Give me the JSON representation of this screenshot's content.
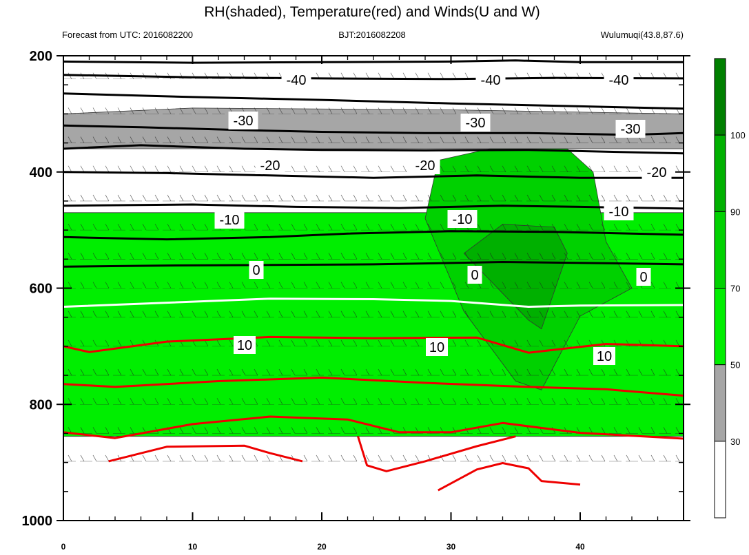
{
  "chart_data": {
    "type": "heatmap",
    "title": "RH(shaded), Temperature(red) and Winds(U and W)",
    "subtitle_left": "Forecast from UTC: 2016082200",
    "subtitle_center": "BJT:2016082208",
    "subtitle_right": "Wulumuqi(43.8,87.6)",
    "xlabel": "",
    "ylabel": "",
    "xlim": [
      0,
      48
    ],
    "ylim": [
      200,
      1000
    ],
    "y_reversed": true,
    "x_ticks": [
      "0",
      "10",
      "20",
      "30",
      "40"
    ],
    "y_ticks": [
      "200",
      "400",
      "600",
      "800",
      "1000"
    ],
    "colorbar": {
      "levels": [
        "30",
        "50",
        "70",
        "90",
        "100"
      ],
      "colors": [
        "#ffffff",
        "#a6a6a6",
        "#00ee00",
        "#00d100",
        "#00b000",
        "#007f00"
      ]
    },
    "temperature_contour_labels": [
      "-40",
      "-40",
      "-40",
      "-30",
      "-30",
      "-30",
      "-20",
      "-20",
      "-20",
      "-10",
      "-10",
      "-10",
      "0",
      "0",
      "0",
      "10",
      "10",
      "10"
    ],
    "temperature_contours": [
      {
        "level": -40,
        "color": "#000000",
        "points": [
          [
            0,
            210
          ],
          [
            10,
            212
          ],
          [
            20,
            211
          ],
          [
            30,
            210
          ],
          [
            35,
            208
          ],
          [
            40,
            211
          ],
          [
            48,
            211
          ]
        ]
      },
      {
        "level": -40,
        "color": "#000000",
        "points": [
          [
            0,
            233
          ],
          [
            10,
            237
          ],
          [
            20,
            239
          ],
          [
            30,
            240
          ],
          [
            38,
            238
          ],
          [
            48,
            239
          ]
        ]
      },
      {
        "level": -30,
        "color": "#000000",
        "points": [
          [
            0,
            265
          ],
          [
            10,
            271
          ],
          [
            20,
            276
          ],
          [
            30,
            282
          ],
          [
            40,
            287
          ],
          [
            48,
            291
          ]
        ]
      },
      {
        "level": -30,
        "color": "#000000",
        "points": [
          [
            0,
            320
          ],
          [
            6,
            323
          ],
          [
            14,
            328
          ],
          [
            20,
            331
          ],
          [
            28,
            333
          ],
          [
            36,
            333
          ],
          [
            44,
            336
          ],
          [
            48,
            333
          ]
        ]
      },
      {
        "level": -30,
        "color": "#000000",
        "points": [
          [
            0,
            360
          ],
          [
            6,
            354
          ],
          [
            14,
            360
          ],
          [
            20,
            362
          ],
          [
            28,
            363
          ],
          [
            36,
            362
          ],
          [
            44,
            366
          ],
          [
            48,
            368
          ]
        ]
      },
      {
        "level": -20,
        "color": "#000000",
        "points": [
          [
            0,
            400
          ],
          [
            8,
            402
          ],
          [
            16,
            406
          ],
          [
            24,
            410
          ],
          [
            32,
            406
          ],
          [
            40,
            410
          ],
          [
            48,
            410
          ]
        ]
      },
      {
        "level": -20,
        "color": "#000000",
        "points": [
          [
            0,
            458
          ],
          [
            10,
            456
          ],
          [
            18,
            460
          ],
          [
            26,
            462
          ],
          [
            34,
            458
          ],
          [
            40,
            460
          ],
          [
            48,
            463
          ]
        ]
      },
      {
        "level": -10,
        "color": "#000000",
        "points": [
          [
            0,
            512
          ],
          [
            8,
            516
          ],
          [
            16,
            512
          ],
          [
            22,
            506
          ],
          [
            30,
            502
          ],
          [
            38,
            503
          ],
          [
            48,
            508
          ]
        ]
      },
      {
        "level": -10,
        "color": "#000000",
        "points": [
          [
            0,
            563
          ],
          [
            8,
            561
          ],
          [
            16,
            560
          ],
          [
            24,
            559
          ],
          [
            34,
            555
          ],
          [
            42,
            557
          ],
          [
            48,
            559
          ]
        ]
      },
      {
        "level": 0,
        "color": "#ffffff",
        "points": [
          [
            0,
            632
          ],
          [
            8,
            625
          ],
          [
            16,
            618
          ],
          [
            24,
            619
          ],
          [
            30,
            622
          ],
          [
            36,
            632
          ],
          [
            40,
            630
          ],
          [
            48,
            629
          ]
        ]
      },
      {
        "level": 10,
        "color": "#ee0000",
        "points": [
          [
            0,
            700
          ],
          [
            2,
            710
          ],
          [
            8,
            692
          ],
          [
            16,
            684
          ],
          [
            24,
            686
          ],
          [
            32,
            685
          ],
          [
            36,
            711
          ],
          [
            42,
            696
          ],
          [
            48,
            700
          ]
        ]
      },
      {
        "level": 10,
        "color": "#ee0000",
        "points": [
          [
            0,
            765
          ],
          [
            4,
            770
          ],
          [
            12,
            760
          ],
          [
            20,
            754
          ],
          [
            28,
            763
          ],
          [
            36,
            770
          ],
          [
            42,
            774
          ],
          [
            48,
            785
          ]
        ]
      },
      {
        "level": 10,
        "color": "#ee0000",
        "points": [
          [
            0,
            848
          ],
          [
            4,
            858
          ],
          [
            10,
            834
          ],
          [
            16,
            821
          ],
          [
            22,
            826
          ],
          [
            26,
            848
          ],
          [
            30,
            848
          ],
          [
            34,
            832
          ],
          [
            40,
            849
          ],
          [
            48,
            859
          ]
        ]
      },
      {
        "level": 20,
        "color": "#ee0000",
        "points": [
          [
            3.5,
            898
          ],
          [
            8,
            873
          ],
          [
            14,
            871
          ],
          [
            16,
            884
          ],
          [
            18.5,
            898
          ]
        ]
      },
      {
        "level": 20,
        "color": "#ee0000",
        "points": [
          [
            22.8,
            855
          ],
          [
            23.5,
            905
          ],
          [
            25,
            915
          ],
          [
            28,
            898
          ],
          [
            32,
            872
          ],
          [
            35,
            855
          ]
        ]
      },
      {
        "level": 20,
        "color": "#ee0000",
        "points": [
          [
            29,
            948
          ],
          [
            32,
            912
          ],
          [
            34,
            901
          ],
          [
            36,
            910
          ],
          [
            37,
            932
          ],
          [
            40,
            938
          ]
        ]
      }
    ],
    "rh_shaded_regions": [
      {
        "class": "30-50",
        "color": "#a6a6a6",
        "points": [
          [
            0,
            300
          ],
          [
            10,
            290
          ],
          [
            30,
            293
          ],
          [
            48,
            300
          ],
          [
            48,
            360
          ],
          [
            0,
            360
          ]
        ]
      },
      {
        "class": "50-70",
        "color": "#00ee00",
        "points": [
          [
            0,
            470
          ],
          [
            48,
            470
          ],
          [
            48,
            855
          ],
          [
            0,
            855
          ]
        ]
      },
      {
        "class": "70-90",
        "color": "#00d100",
        "points": [
          [
            29,
            380
          ],
          [
            33,
            360
          ],
          [
            39,
            360
          ],
          [
            41,
            400
          ],
          [
            42,
            520
          ],
          [
            44,
            600
          ],
          [
            40,
            648
          ],
          [
            37,
            775
          ],
          [
            35,
            760
          ],
          [
            31,
            640
          ],
          [
            28,
            480
          ]
        ]
      },
      {
        "class": "90-100",
        "color": "#00b000",
        "points": [
          [
            31,
            540
          ],
          [
            34,
            490
          ],
          [
            38,
            495
          ],
          [
            39,
            540
          ],
          [
            37,
            670
          ],
          [
            36,
            655
          ]
        ]
      }
    ]
  }
}
